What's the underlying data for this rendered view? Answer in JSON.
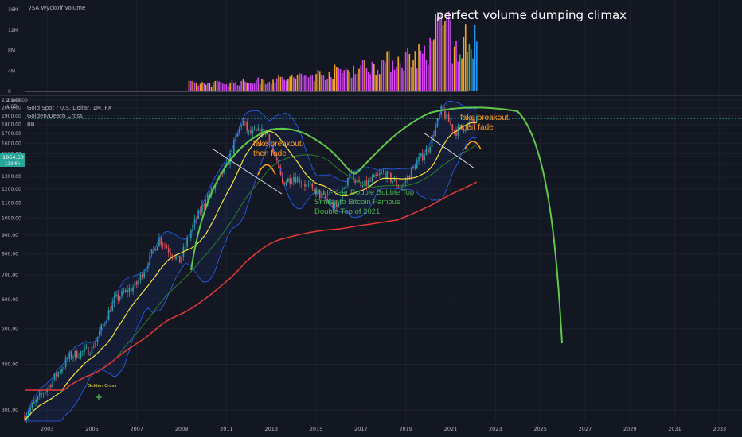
{
  "volume_panel": {
    "title": "VSA Wyckoff Volume",
    "y_ticks": [
      "16M",
      "12M",
      "8M",
      "4M",
      "0"
    ],
    "headline": "perfect volume dumping climax"
  },
  "price_panel": {
    "symbol_line": "Gold Spot / U.S. Dollar, 1M, FX",
    "indicator_1": "Golden/Death Cross",
    "indicator_2": "BB",
    "currency": "USD",
    "top_partial_tick": "2,140.00",
    "last_price": "1864.50",
    "countdown": "12d 6h",
    "y_ticks": [
      "2100.00",
      "2000.00",
      "1900.00",
      "1800.00",
      "1700.00",
      "1600.00",
      "1500.00",
      "1400.00",
      "1300.00",
      "1200.00",
      "1100.00",
      "1000.00",
      "900.00",
      "800.00",
      "700.00",
      "600.00",
      "500.00",
      "400.00",
      "300.00"
    ],
    "x_ticks": [
      "2003",
      "2005",
      "2007",
      "2009",
      "2011",
      "2013",
      "2015",
      "2017",
      "2019",
      "2021",
      "2023",
      "2025",
      "2027",
      "2029",
      "2031",
      "2033"
    ]
  },
  "annotations": {
    "fake_breakout_1": [
      "fake breakout,",
      "then fade"
    ],
    "fake_breakout_2": [
      "fake breakout,",
      "then fade"
    ],
    "double_top_text": [
      "Multi-Year Double Bubble Top",
      "Similar to Bitcoin Famous",
      "Double Top of 2021"
    ],
    "golden_cross": "Golden Cross",
    "dot": "."
  },
  "colors": {
    "background": "#131722",
    "grid": "#1e222d",
    "axis_text": "#b2b5be",
    "bull": "#26a69a",
    "bear": "#ef5350",
    "ma_yellow": "#f5e23b",
    "ma_green": "#2e7d32",
    "ma_red": "#e53935",
    "bb_band": "#2962ff",
    "bubble_curve": "#5fc94a",
    "annotation_orange": "#ff9e1f",
    "annotation_green": "#4caf50",
    "price_label_bg": "#26a69a",
    "volume_purple": "#c04fe3",
    "volume_magenta": "#e040fb",
    "volume_orange": "#f2a22b",
    "volume_green": "#4caf50",
    "volume_blue": "#2196f3"
  },
  "chart_data": {
    "type": "candlestick",
    "title": "Gold Spot / U.S. Dollar, 1M, FX",
    "y_scale": "log",
    "ylim": [
      280,
      2140
    ],
    "xlim": [
      2002.0,
      2034.0
    ],
    "price_path": [
      [
        2002.0,
        290
      ],
      [
        2003.0,
        345
      ],
      [
        2004.0,
        420
      ],
      [
        2005.0,
        440
      ],
      [
        2006.0,
        600
      ],
      [
        2007.0,
        660
      ],
      [
        2008.0,
        880
      ],
      [
        2008.9,
        760
      ],
      [
        2009.5,
        950
      ],
      [
        2010.0,
        1100
      ],
      [
        2011.0,
        1380
      ],
      [
        2011.7,
        1850
      ],
      [
        2012.0,
        1700
      ],
      [
        2012.8,
        1720
      ],
      [
        2013.5,
        1250
      ],
      [
        2014.0,
        1300
      ],
      [
        2015.0,
        1180
      ],
      [
        2015.9,
        1060
      ],
      [
        2016.5,
        1340
      ],
      [
        2017.0,
        1210
      ],
      [
        2018.0,
        1330
      ],
      [
        2018.8,
        1210
      ],
      [
        2019.5,
        1420
      ],
      [
        2020.0,
        1550
      ],
      [
        2020.6,
        1970
      ],
      [
        2021.2,
        1720
      ],
      [
        2021.8,
        1800
      ],
      [
        2022.2,
        1864.5
      ]
    ],
    "last_value": 1864.5,
    "moving_averages": [
      "yellow",
      "green",
      "red"
    ],
    "bollinger_bands": true,
    "projected_bubble_curve": true,
    "volume": {
      "ylim": [
        0,
        16000000
      ],
      "peak": 16400000,
      "start_year": 2009.3
    }
  }
}
